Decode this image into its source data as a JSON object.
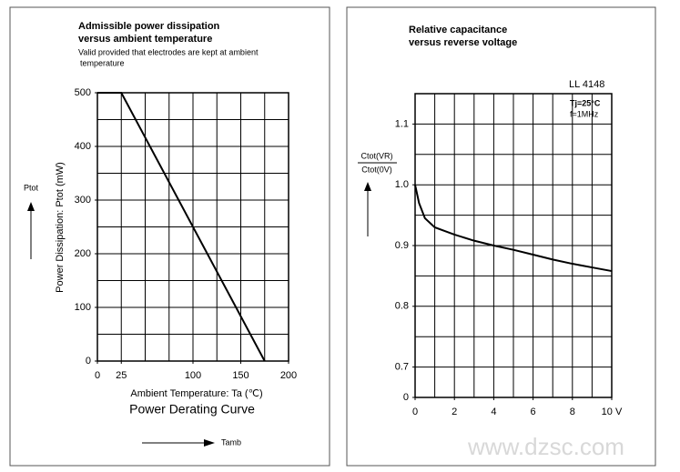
{
  "chart_data": [
    {
      "type": "line",
      "title": [
        "Admissible power dissipation",
        "versus ambient temperature"
      ],
      "subtitle": [
        "Valid provided that electrodes are kept at ambient",
        "temperature"
      ],
      "ylabel": "Power Dissipation: Ptot (mW)",
      "xlabel": "Ambient Temperature: Ta (℃)",
      "caption": "Power Derating Curve",
      "side_labels": {
        "y": "Ptot",
        "x": "Tamb"
      },
      "x": [
        0,
        25,
        175
      ],
      "values": [
        500,
        500,
        0
      ],
      "color": "#000000",
      "xlim": [
        0,
        200
      ],
      "ylim": [
        0,
        500
      ],
      "xticks": [
        0,
        25,
        100,
        150,
        200
      ],
      "yticks": [
        0,
        100,
        200,
        300,
        400,
        500
      ],
      "xgrid": [
        25,
        50,
        75,
        100,
        125,
        150,
        175
      ],
      "ygrid": [
        50,
        100,
        150,
        200,
        250,
        300,
        350,
        400,
        450
      ]
    },
    {
      "type": "line",
      "title": [
        "Relative capacitance",
        "versus reverse voltage"
      ],
      "ylabel": {
        "numerator": "Ctot(VR)",
        "denominator": "Ctot(0V)"
      },
      "annotations": [
        "LL 4148",
        "Tj=25°C",
        "f=1MHz"
      ],
      "x": [
        0,
        0.2,
        0.5,
        1,
        2,
        3,
        4,
        5,
        6,
        7,
        8,
        9,
        10
      ],
      "values": [
        1.0,
        0.97,
        0.945,
        0.93,
        0.918,
        0.908,
        0.9,
        0.893,
        0.885,
        0.877,
        0.87,
        0.864,
        0.858
      ],
      "color": "#000000",
      "xlim": [
        0,
        10
      ],
      "ylim": [
        0.65,
        1.15
      ],
      "xticks": [
        0,
        2,
        4,
        6,
        8,
        {
          "value": 10,
          "label": "10 V"
        }
      ],
      "yticks": [
        0,
        0.7,
        0.8,
        0.9,
        {
          "value": 1.0,
          "label": "1.0"
        },
        1.1
      ],
      "xgrid": [
        1,
        2,
        3,
        4,
        5,
        6,
        7,
        8,
        9
      ],
      "ygrid": [
        0.7,
        0.75,
        0.8,
        0.85,
        0.9,
        0.95,
        1.0,
        1.05,
        1.1
      ]
    }
  ],
  "watermark": "www.dzsc.com"
}
